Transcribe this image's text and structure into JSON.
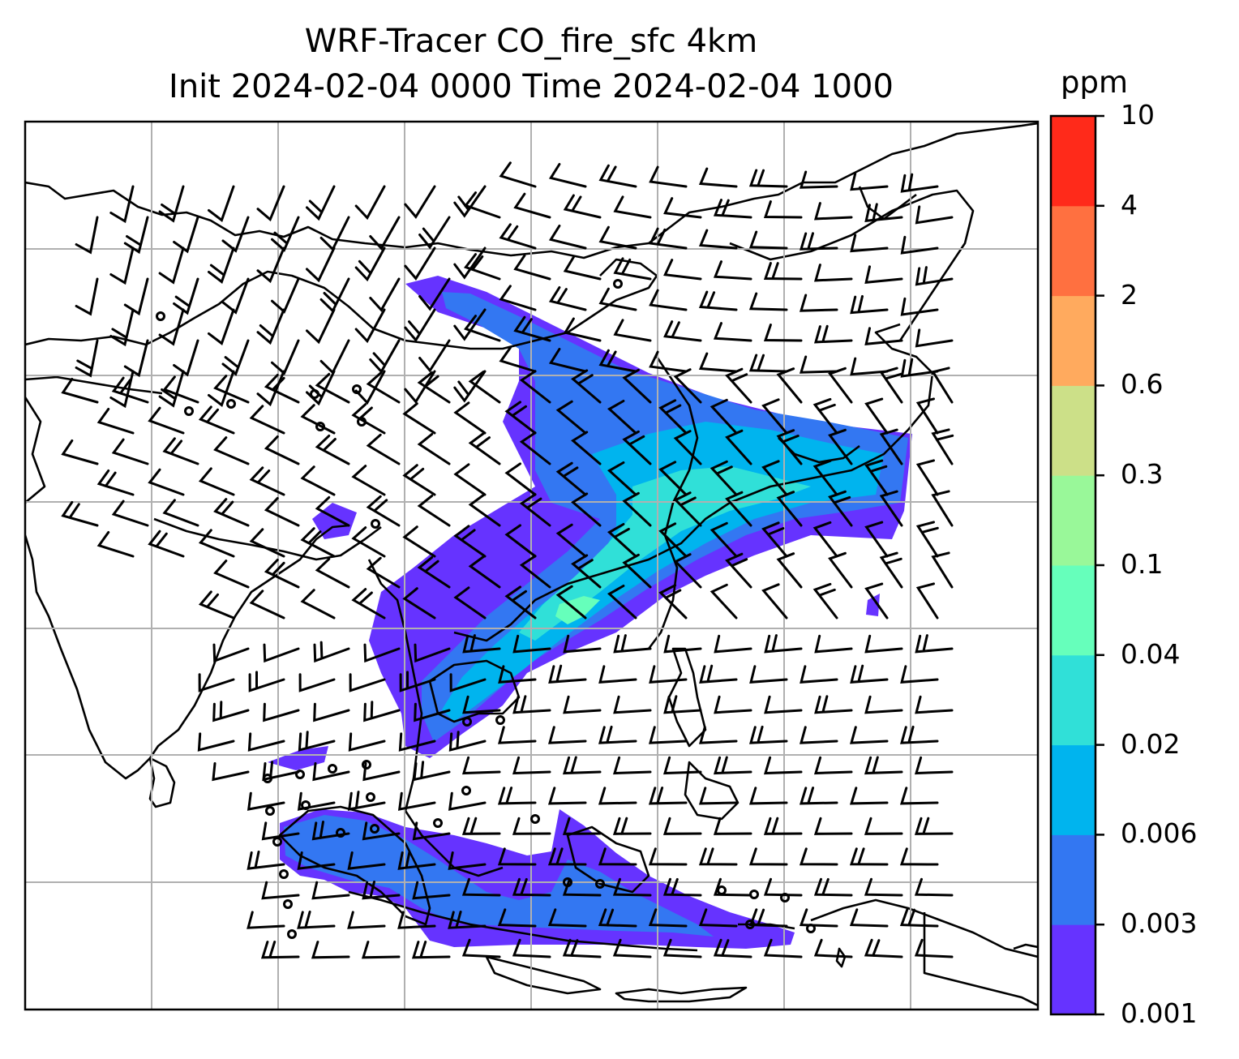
{
  "figure": {
    "title_line1": "WRF-Tracer CO_fire_sfc 4km",
    "title_line2": "Init 2024-02-04 0000 Time 2024-02-04 1000"
  },
  "colorbar": {
    "unit": "ppm",
    "levels": [
      "0.001",
      "0.003",
      "0.006",
      "0.02",
      "0.04",
      "0.1",
      "0.3",
      "0.6",
      "2",
      "4",
      "10"
    ],
    "colors": [
      "#6633ff",
      "#3377f2",
      "#00b4ee",
      "#30e0d8",
      "#66ffbb",
      "#99f899",
      "#cce088",
      "#ffaa5e",
      "#ff7040",
      "#ff2a1a"
    ]
  },
  "map": {
    "region": "Southeast Asia, India, South China, Indonesia",
    "gridlines": true,
    "plume_levels": {
      "outer": "0.001",
      "mid": "0.003",
      "inner": "0.006",
      "core": "0.02",
      "peak": "0.04"
    },
    "wind_barbs": "surface wind barbs overlaid"
  }
}
